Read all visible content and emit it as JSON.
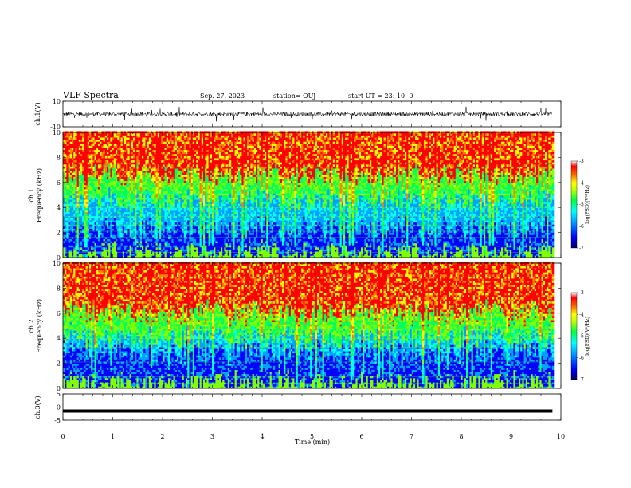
{
  "header": {
    "title": "VLF Spectra",
    "date": "Sep. 27, 2023",
    "station": "station= OUJ",
    "start": "start  UT  =    23: 10: 0"
  },
  "colors": {
    "spectrum": [
      "#000080",
      "#0000ff",
      "#00a0ff",
      "#00ffff",
      "#00ff60",
      "#80ff00",
      "#ffff00",
      "#ff8000",
      "#ff0000",
      "#ffffff"
    ],
    "waveform": "#000000"
  },
  "chart_data": [
    {
      "type": "line",
      "name": "ch1-waveform",
      "ylabel": "ch.1(V)",
      "ylim": [
        -10,
        10
      ],
      "yticks": [
        "10",
        "-10"
      ],
      "xlim": [
        0,
        10
      ],
      "approx_mean": 0,
      "approx_amplitude": 1.5
    },
    {
      "type": "heatmap",
      "name": "ch1-spectrogram",
      "ylabel": "ch.1\nFrequency  (kHz)",
      "ylim": [
        0,
        10
      ],
      "yticks": [
        "0",
        "2",
        "4",
        "6",
        "8",
        "10"
      ],
      "xlim": [
        0,
        9.83
      ],
      "colorbar": {
        "label": "log(PSD)(V²/Hz)",
        "range": [
          -7,
          -3
        ],
        "ticks": [
          "-3",
          "-4",
          "-5",
          "-6",
          "-7"
        ]
      },
      "approx_boundaries_khz": {
        "blue_below": 2.2,
        "cyan_below": 4.5,
        "green_below": 6.5
      }
    },
    {
      "type": "heatmap",
      "name": "ch2-spectrogram",
      "ylabel": "ch.2\nFrequency  (kHz)",
      "ylim": [
        0,
        10
      ],
      "yticks": [
        "0",
        "2",
        "4",
        "6",
        "8",
        "10"
      ],
      "xlim": [
        0,
        9.83
      ],
      "colorbar": {
        "label": "log(PSD)(V²/Hz)",
        "range": [
          -7,
          -3
        ],
        "ticks": [
          "-3",
          "-4",
          "-5",
          "-6",
          "-7"
        ]
      },
      "approx_boundaries_khz": {
        "blue_below": 2.8,
        "cyan_below": 4.0,
        "green_below": 6.0
      }
    },
    {
      "type": "line",
      "name": "ch3-waveform",
      "ylabel": "ch.3(V)",
      "ylim": [
        -5,
        5
      ],
      "yticks": [
        "5",
        "0",
        "-5"
      ],
      "xlim": [
        0,
        10
      ],
      "approx_level": -1.5
    }
  ],
  "xaxis": {
    "label": "Time  (min)",
    "ticks": [
      "0",
      "1",
      "2",
      "3",
      "4",
      "5",
      "6",
      "7",
      "8",
      "9",
      "10"
    ]
  }
}
